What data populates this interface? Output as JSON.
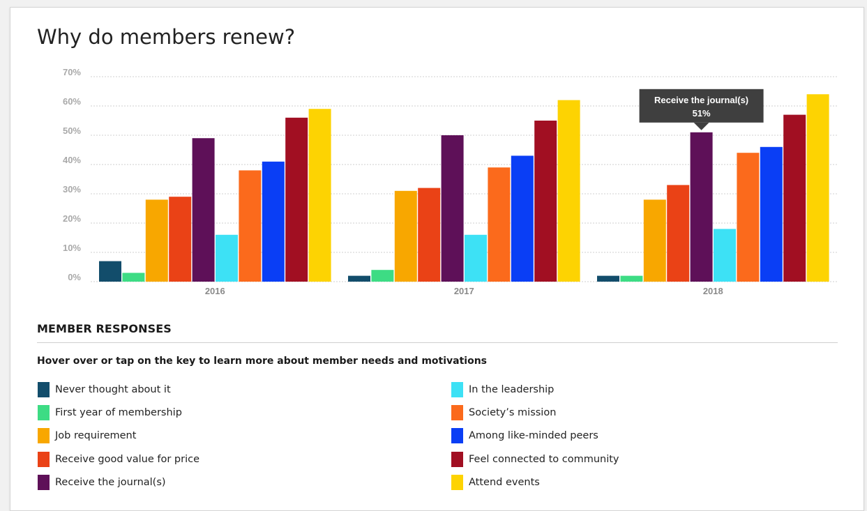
{
  "page": {
    "title": "Why do members renew?",
    "responses_heading": "MEMBER RESPONSES",
    "instruction": "Hover over or tap on the key to learn more about member needs and motivations"
  },
  "tooltip": {
    "series_index": 4,
    "category_index": 2,
    "label": "Receive the journal(s)",
    "value_text": "51%"
  },
  "chart_data": {
    "type": "bar",
    "title": "Why do members renew?",
    "xlabel": "",
    "ylabel": "",
    "categories": [
      "2016",
      "2017",
      "2018"
    ],
    "y_ticks": [
      "0%",
      "10%",
      "20%",
      "30%",
      "40%",
      "50%",
      "60%",
      "70%"
    ],
    "ylim": [
      0,
      70
    ],
    "grid": true,
    "legend_position": "bottom",
    "series": [
      {
        "name": "Never thought about it",
        "color": "#124d6b",
        "values": [
          7,
          2,
          2
        ]
      },
      {
        "name": "First year of membership",
        "color": "#3ddc84",
        "values": [
          3,
          4,
          2
        ]
      },
      {
        "name": "Job requirement",
        "color": "#f8a700",
        "values": [
          28,
          31,
          28
        ]
      },
      {
        "name": "Receive good value for price",
        "color": "#ea4216",
        "values": [
          29,
          32,
          33
        ]
      },
      {
        "name": "Receive the journal(s)",
        "color": "#5e1058",
        "values": [
          49,
          50,
          51
        ]
      },
      {
        "name": "In the leadership",
        "color": "#3de1f5",
        "values": [
          16,
          16,
          18
        ]
      },
      {
        "name": "Society’s mission",
        "color": "#fb6a1c",
        "values": [
          38,
          39,
          44
        ]
      },
      {
        "name": "Among like-minded peers",
        "color": "#0a3ef5",
        "values": [
          41,
          43,
          46
        ]
      },
      {
        "name": "Feel connected to community",
        "color": "#a10f22",
        "values": [
          56,
          55,
          57
        ]
      },
      {
        "name": "Attend events",
        "color": "#fdd302",
        "values": [
          59,
          62,
          64
        ]
      }
    ]
  }
}
